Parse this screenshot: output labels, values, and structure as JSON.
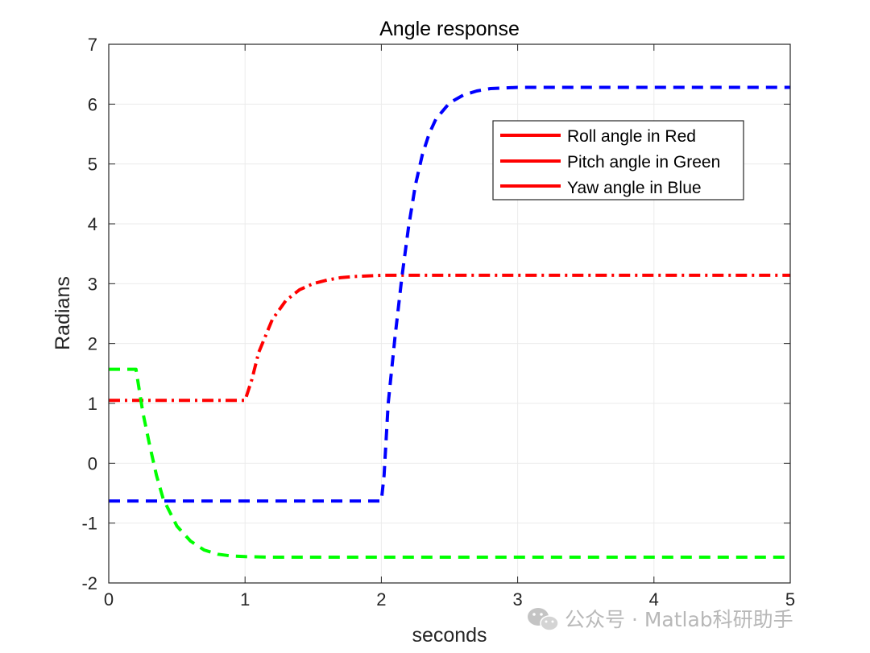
{
  "chart_data": {
    "type": "line",
    "title": "Angle response",
    "xlabel": "seconds",
    "ylabel": "Radians",
    "xlim": [
      0,
      5
    ],
    "ylim": [
      -2,
      7
    ],
    "xticks": [
      0,
      1,
      2,
      3,
      4,
      5
    ],
    "yticks": [
      -2,
      -1,
      0,
      1,
      2,
      3,
      4,
      5,
      6,
      7
    ],
    "grid": true,
    "legend": {
      "placement": "top-right",
      "entries": [
        "Roll angle in Red",
        "Pitch angle in Green",
        "Yaw angle in Blue"
      ],
      "swatch_color": "#ff0000"
    },
    "series": [
      {
        "name": "Roll angle",
        "color": "#ff0000",
        "style": "dash-dot",
        "x": [
          0,
          0.5,
          1.0,
          1.05,
          1.1,
          1.2,
          1.3,
          1.4,
          1.5,
          1.6,
          1.7,
          1.8,
          2.0,
          3.0,
          4.0,
          5.0
        ],
        "y": [
          1.05,
          1.05,
          1.05,
          1.4,
          1.85,
          2.4,
          2.72,
          2.9,
          3.0,
          3.06,
          3.1,
          3.12,
          3.14,
          3.14,
          3.14,
          3.14
        ]
      },
      {
        "name": "Pitch angle",
        "color": "#00ff00",
        "style": "dashed",
        "x": [
          0,
          0.1,
          0.2,
          0.25,
          0.3,
          0.35,
          0.4,
          0.5,
          0.6,
          0.7,
          0.8,
          0.9,
          1.0,
          1.2,
          2.0,
          3.0,
          4.0,
          5.0
        ],
        "y": [
          1.57,
          1.57,
          1.57,
          0.85,
          0.3,
          -0.2,
          -0.6,
          -1.05,
          -1.3,
          -1.45,
          -1.52,
          -1.55,
          -1.56,
          -1.57,
          -1.57,
          -1.57,
          -1.57,
          -1.57
        ]
      },
      {
        "name": "Yaw angle",
        "color": "#0000ff",
        "style": "dashed",
        "x": [
          0,
          1.0,
          2.0,
          2.02,
          2.05,
          2.1,
          2.15,
          2.2,
          2.25,
          2.3,
          2.35,
          2.4,
          2.5,
          2.6,
          2.7,
          2.8,
          3.0,
          3.5,
          4.0,
          5.0
        ],
        "y": [
          -0.63,
          -0.63,
          -0.63,
          -0.2,
          1.0,
          2.1,
          3.1,
          3.95,
          4.65,
          5.15,
          5.5,
          5.75,
          6.02,
          6.15,
          6.22,
          6.26,
          6.28,
          6.28,
          6.28,
          6.28
        ]
      }
    ]
  },
  "watermark": {
    "text": "公众号 · Matlab科研助手",
    "icon": "wechat-icon"
  }
}
